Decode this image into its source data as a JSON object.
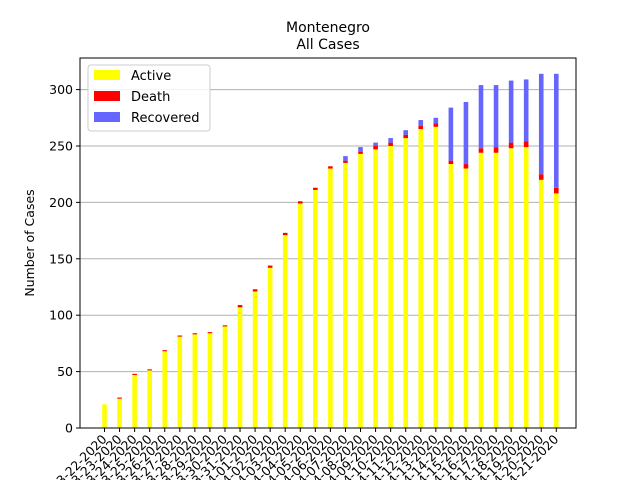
{
  "chart_data": {
    "type": "bar",
    "stacked": true,
    "title": "Montenegro",
    "subtitle": "All Cases",
    "xlabel": "",
    "ylabel": "Number of Cases",
    "ylim": [
      0,
      328
    ],
    "yticks": [
      0,
      50,
      100,
      150,
      200,
      250,
      300
    ],
    "grid": "horizontal",
    "legend": "top-left",
    "categories": [
      "3-22-2020",
      "3-23-2020",
      "3-24-2020",
      "3-25-2020",
      "3-26-2020",
      "3-27-2020",
      "3-28-2020",
      "3-29-2020",
      "3-30-2020",
      "3-31-2020",
      "4-01-2020",
      "4-02-2020",
      "4-03-2020",
      "4-04-2020",
      "4-05-2020",
      "4-06-2020",
      "4-07-2020",
      "4-08-2020",
      "4-09-2020",
      "4-10-2020",
      "4-11-2020",
      "4-12-2020",
      "4-13-2020",
      "4-14-2020",
      "4-15-2020",
      "4-16-2020",
      "4-17-2020",
      "4-18-2020",
      "4-19-2020",
      "4-20-2020",
      "4-21-2020"
    ],
    "series": [
      {
        "name": "Active",
        "color": "#ffff00",
        "values": [
          21,
          26,
          47,
          51,
          68,
          81,
          83,
          84,
          90,
          107,
          121,
          142,
          171,
          199,
          211,
          230,
          235,
          243,
          247,
          250,
          257,
          265,
          267,
          234,
          230,
          244,
          244,
          248,
          249,
          220,
          208
        ]
      },
      {
        "name": "Death",
        "color": "#ff0000",
        "values": [
          0,
          1,
          1,
          1,
          1,
          1,
          1,
          1,
          1,
          2,
          2,
          2,
          2,
          2,
          2,
          2,
          2,
          2,
          3,
          3,
          3,
          3,
          3,
          3,
          4,
          4,
          5,
          5,
          5,
          5,
          5
        ]
      },
      {
        "name": "Recovered",
        "color": "#6666ff",
        "values": [
          0,
          0,
          0,
          0,
          0,
          0,
          0,
          0,
          0,
          0,
          0,
          0,
          0,
          0,
          0,
          0,
          4,
          4,
          3,
          4,
          4,
          5,
          5,
          47,
          55,
          56,
          55,
          55,
          55,
          89,
          101
        ]
      }
    ]
  }
}
